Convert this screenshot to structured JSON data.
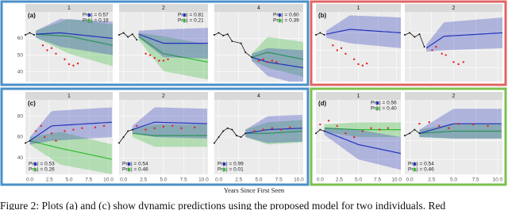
{
  "figure": {
    "groups": [
      {
        "label": "(a)",
        "yticks": [
          "60",
          "50",
          "40"
        ],
        "panels": [
          {
            "strip": "1",
            "annotation": [
              {
                "pre": "Pr(",
                "post": ") = 0.57"
              },
              {
                "pre": "Pr(",
                "post": ") = 0.18"
              }
            ]
          },
          {
            "strip": "2",
            "annotation": [
              {
                "pre": "Pr(",
                "post": ") = 0.81"
              },
              {
                "pre": "Pr(",
                "post": ") = 0.21"
              }
            ]
          },
          {
            "strip": "4",
            "annotation": [
              {
                "pre": "Pr(",
                "post": ") = 0.60"
              },
              {
                "pre": "Pr(",
                "post": ") = 0.39"
              }
            ]
          }
        ]
      },
      {
        "label": "(b)",
        "panels": [
          {
            "strip": "1"
          },
          {
            "strip": "2"
          }
        ]
      },
      {
        "label": "(c)",
        "yticks": [
          "80",
          "60",
          "40"
        ],
        "panels": [
          {
            "strip": "1",
            "annotation": [
              {
                "pre": "Pr(",
                "post": ") = 0.53"
              },
              {
                "pre": "Pr(",
                "post": ") = 0.26"
              }
            ]
          },
          {
            "strip": "2",
            "annotation": [
              {
                "pre": "Pr(",
                "post": ") = 0.54"
              },
              {
                "pre": "Pr(",
                "post": ") = 0.46"
              }
            ]
          },
          {
            "strip": "4",
            "annotation": [
              {
                "pre": "Pr(",
                "post": ") = 0.99"
              },
              {
                "pre": "Pr(",
                "post": ") = 0.01"
              }
            ]
          }
        ]
      },
      {
        "label": "(d)",
        "panels": [
          {
            "strip": "1",
            "annotation": [
              {
                "pre": "Pr(",
                "post": ") = 0.56"
              },
              {
                "pre": "Pr(",
                "post": ") = 0.40"
              }
            ]
          },
          {
            "strip": "2",
            "annotation": [
              {
                "pre": "Pr(",
                "post": ") = 0.54"
              },
              {
                "pre": "Pr(",
                "post": ") = 0.46"
              }
            ]
          }
        ]
      }
    ],
    "xticks": [
      "0.0",
      "2.5",
      "5.0",
      "7.5",
      "10.0"
    ],
    "xlabel": "Years Since First Seen",
    "caption": "Figure 2: Plots (a) and (c) show dynamic predictions using the proposed model for two individuals. Red"
  }
}
